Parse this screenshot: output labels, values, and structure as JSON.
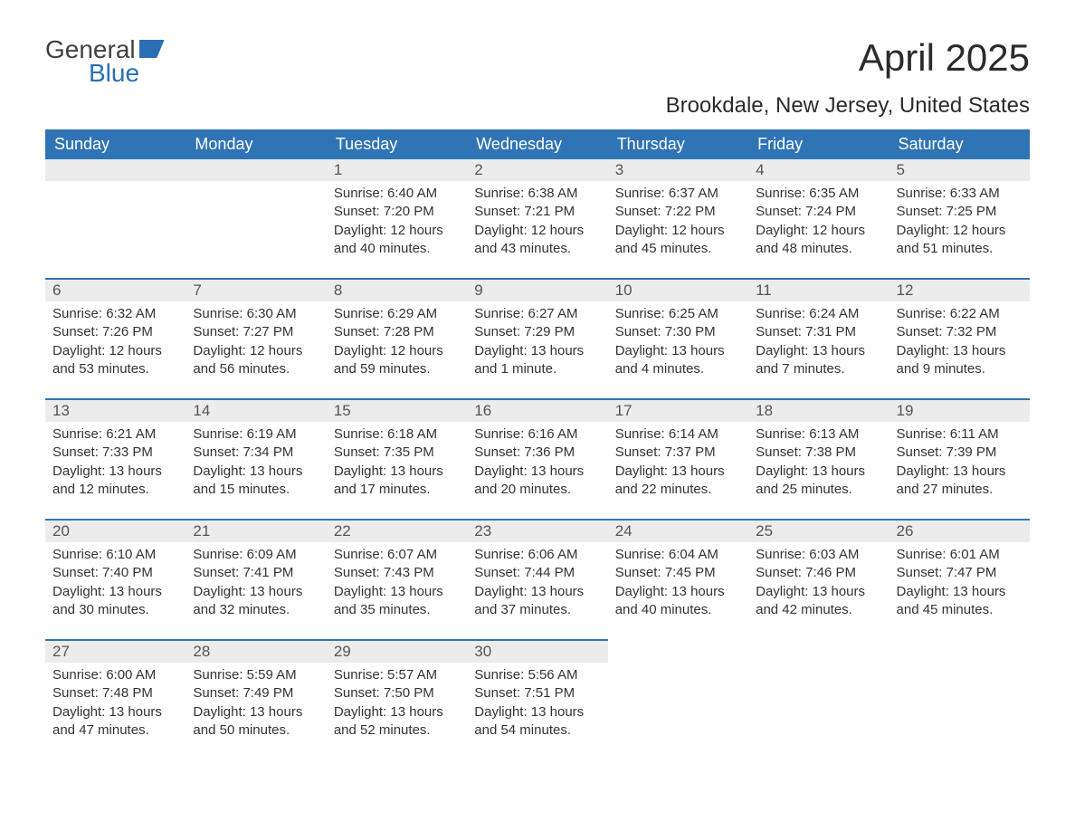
{
  "logo": {
    "line1": "General",
    "line2": "Blue"
  },
  "title": "April 2025",
  "subtitle": "Brookdale, New Jersey, United States",
  "columns": [
    "Sunday",
    "Monday",
    "Tuesday",
    "Wednesday",
    "Thursday",
    "Friday",
    "Saturday"
  ],
  "colors": {
    "header_bg": "#2f74b5",
    "header_fg": "#ffffff",
    "day_bg": "#ececec",
    "rule": "#2f74b5",
    "brand_blue": "#2a6fb5"
  },
  "weeks": [
    [
      null,
      null,
      {
        "n": "1",
        "sunrise": "Sunrise: 6:40 AM",
        "sunset": "Sunset: 7:20 PM",
        "day": "Daylight: 12 hours and 40 minutes."
      },
      {
        "n": "2",
        "sunrise": "Sunrise: 6:38 AM",
        "sunset": "Sunset: 7:21 PM",
        "day": "Daylight: 12 hours and 43 minutes."
      },
      {
        "n": "3",
        "sunrise": "Sunrise: 6:37 AM",
        "sunset": "Sunset: 7:22 PM",
        "day": "Daylight: 12 hours and 45 minutes."
      },
      {
        "n": "4",
        "sunrise": "Sunrise: 6:35 AM",
        "sunset": "Sunset: 7:24 PM",
        "day": "Daylight: 12 hours and 48 minutes."
      },
      {
        "n": "5",
        "sunrise": "Sunrise: 6:33 AM",
        "sunset": "Sunset: 7:25 PM",
        "day": "Daylight: 12 hours and 51 minutes."
      }
    ],
    [
      {
        "n": "6",
        "sunrise": "Sunrise: 6:32 AM",
        "sunset": "Sunset: 7:26 PM",
        "day": "Daylight: 12 hours and 53 minutes."
      },
      {
        "n": "7",
        "sunrise": "Sunrise: 6:30 AM",
        "sunset": "Sunset: 7:27 PM",
        "day": "Daylight: 12 hours and 56 minutes."
      },
      {
        "n": "8",
        "sunrise": "Sunrise: 6:29 AM",
        "sunset": "Sunset: 7:28 PM",
        "day": "Daylight: 12 hours and 59 minutes."
      },
      {
        "n": "9",
        "sunrise": "Sunrise: 6:27 AM",
        "sunset": "Sunset: 7:29 PM",
        "day": "Daylight: 13 hours and 1 minute."
      },
      {
        "n": "10",
        "sunrise": "Sunrise: 6:25 AM",
        "sunset": "Sunset: 7:30 PM",
        "day": "Daylight: 13 hours and 4 minutes."
      },
      {
        "n": "11",
        "sunrise": "Sunrise: 6:24 AM",
        "sunset": "Sunset: 7:31 PM",
        "day": "Daylight: 13 hours and 7 minutes."
      },
      {
        "n": "12",
        "sunrise": "Sunrise: 6:22 AM",
        "sunset": "Sunset: 7:32 PM",
        "day": "Daylight: 13 hours and 9 minutes."
      }
    ],
    [
      {
        "n": "13",
        "sunrise": "Sunrise: 6:21 AM",
        "sunset": "Sunset: 7:33 PM",
        "day": "Daylight: 13 hours and 12 minutes."
      },
      {
        "n": "14",
        "sunrise": "Sunrise: 6:19 AM",
        "sunset": "Sunset: 7:34 PM",
        "day": "Daylight: 13 hours and 15 minutes."
      },
      {
        "n": "15",
        "sunrise": "Sunrise: 6:18 AM",
        "sunset": "Sunset: 7:35 PM",
        "day": "Daylight: 13 hours and 17 minutes."
      },
      {
        "n": "16",
        "sunrise": "Sunrise: 6:16 AM",
        "sunset": "Sunset: 7:36 PM",
        "day": "Daylight: 13 hours and 20 minutes."
      },
      {
        "n": "17",
        "sunrise": "Sunrise: 6:14 AM",
        "sunset": "Sunset: 7:37 PM",
        "day": "Daylight: 13 hours and 22 minutes."
      },
      {
        "n": "18",
        "sunrise": "Sunrise: 6:13 AM",
        "sunset": "Sunset: 7:38 PM",
        "day": "Daylight: 13 hours and 25 minutes."
      },
      {
        "n": "19",
        "sunrise": "Sunrise: 6:11 AM",
        "sunset": "Sunset: 7:39 PM",
        "day": "Daylight: 13 hours and 27 minutes."
      }
    ],
    [
      {
        "n": "20",
        "sunrise": "Sunrise: 6:10 AM",
        "sunset": "Sunset: 7:40 PM",
        "day": "Daylight: 13 hours and 30 minutes."
      },
      {
        "n": "21",
        "sunrise": "Sunrise: 6:09 AM",
        "sunset": "Sunset: 7:41 PM",
        "day": "Daylight: 13 hours and 32 minutes."
      },
      {
        "n": "22",
        "sunrise": "Sunrise: 6:07 AM",
        "sunset": "Sunset: 7:43 PM",
        "day": "Daylight: 13 hours and 35 minutes."
      },
      {
        "n": "23",
        "sunrise": "Sunrise: 6:06 AM",
        "sunset": "Sunset: 7:44 PM",
        "day": "Daylight: 13 hours and 37 minutes."
      },
      {
        "n": "24",
        "sunrise": "Sunrise: 6:04 AM",
        "sunset": "Sunset: 7:45 PM",
        "day": "Daylight: 13 hours and 40 minutes."
      },
      {
        "n": "25",
        "sunrise": "Sunrise: 6:03 AM",
        "sunset": "Sunset: 7:46 PM",
        "day": "Daylight: 13 hours and 42 minutes."
      },
      {
        "n": "26",
        "sunrise": "Sunrise: 6:01 AM",
        "sunset": "Sunset: 7:47 PM",
        "day": "Daylight: 13 hours and 45 minutes."
      }
    ],
    [
      {
        "n": "27",
        "sunrise": "Sunrise: 6:00 AM",
        "sunset": "Sunset: 7:48 PM",
        "day": "Daylight: 13 hours and 47 minutes."
      },
      {
        "n": "28",
        "sunrise": "Sunrise: 5:59 AM",
        "sunset": "Sunset: 7:49 PM",
        "day": "Daylight: 13 hours and 50 minutes."
      },
      {
        "n": "29",
        "sunrise": "Sunrise: 5:57 AM",
        "sunset": "Sunset: 7:50 PM",
        "day": "Daylight: 13 hours and 52 minutes."
      },
      {
        "n": "30",
        "sunrise": "Sunrise: 5:56 AM",
        "sunset": "Sunset: 7:51 PM",
        "day": "Daylight: 13 hours and 54 minutes."
      },
      null,
      null,
      null
    ]
  ]
}
